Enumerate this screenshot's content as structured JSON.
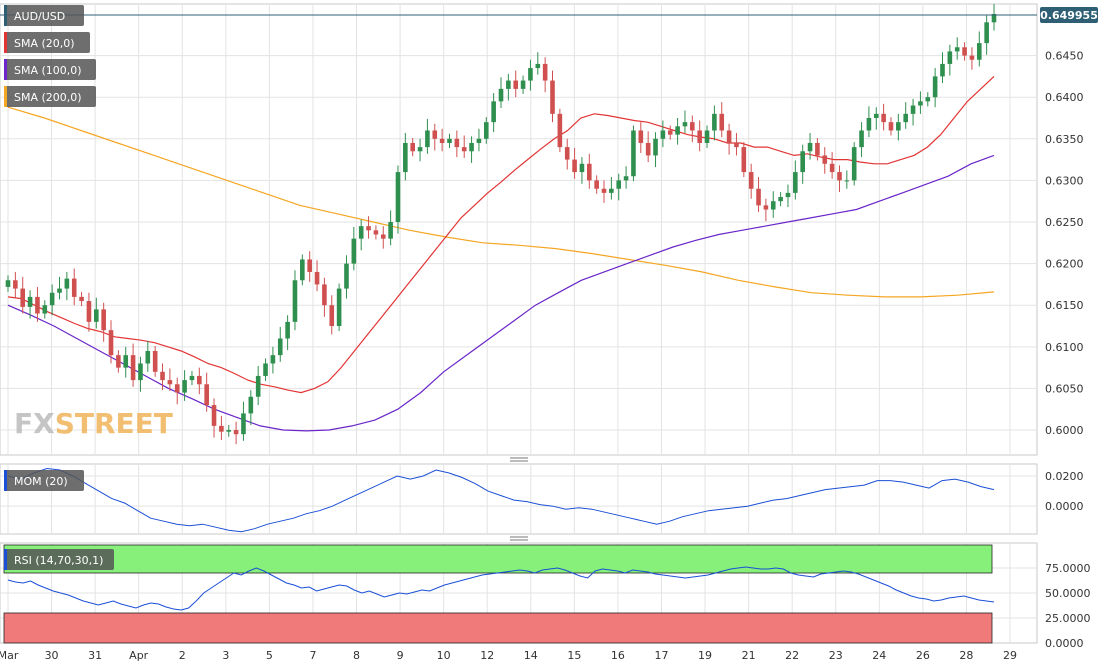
{
  "chart_data": [
    {
      "type": "candlestick",
      "symbol": "AUD/USD",
      "last_price": "0.649955",
      "ylim": [
        0.597,
        0.6512
      ],
      "y_ticks": [
        {
          "v": 0.645,
          "label": "0.6450"
        },
        {
          "v": 0.64,
          "label": "0.6400"
        },
        {
          "v": 0.635,
          "label": "0.6350"
        },
        {
          "v": 0.63,
          "label": "0.6300"
        },
        {
          "v": 0.625,
          "label": "0.6250"
        },
        {
          "v": 0.62,
          "label": "0.6200"
        },
        {
          "v": 0.615,
          "label": "0.6150"
        },
        {
          "v": 0.61,
          "label": "0.6100"
        },
        {
          "v": 0.605,
          "label": "0.6050"
        },
        {
          "v": 0.6,
          "label": "0.6000"
        }
      ],
      "x_labels": [
        "Mar",
        "30",
        "31",
        "Apr",
        "2",
        "3",
        "5",
        "7",
        "8",
        "9",
        "10",
        "12",
        "14",
        "15",
        "16",
        "17",
        "19",
        "21",
        "22",
        "23",
        "24",
        "26",
        "28",
        "29"
      ],
      "legend": [
        {
          "label": "AUD/USD",
          "color": "#2e5f75"
        },
        {
          "label": "SMA (20,0)",
          "color": "#e33434"
        },
        {
          "label": "SMA (100,0)",
          "color": "#6a26c9"
        },
        {
          "label": "SMA (200,0)",
          "color": "#f5a623"
        }
      ],
      "closes": [
        0.618,
        0.617,
        0.6148,
        0.616,
        0.614,
        0.615,
        0.6165,
        0.617,
        0.6182,
        0.616,
        0.6155,
        0.613,
        0.6145,
        0.612,
        0.609,
        0.6075,
        0.609,
        0.606,
        0.608,
        0.6095,
        0.607,
        0.606,
        0.6055,
        0.6045,
        0.606,
        0.6065,
        0.6055,
        0.603,
        0.6005,
        0.5998,
        0.6,
        0.5995,
        0.602,
        0.604,
        0.6065,
        0.608,
        0.609,
        0.611,
        0.613,
        0.618,
        0.6205,
        0.619,
        0.6175,
        0.615,
        0.6125,
        0.617,
        0.62,
        0.623,
        0.6245,
        0.624,
        0.6235,
        0.623,
        0.625,
        0.631,
        0.6345,
        0.6335,
        0.634,
        0.636,
        0.635,
        0.6345,
        0.635,
        0.634,
        0.6335,
        0.6345,
        0.635,
        0.637,
        0.6395,
        0.641,
        0.642,
        0.641,
        0.642,
        0.6435,
        0.644,
        0.642,
        0.638,
        0.634,
        0.6325,
        0.631,
        0.632,
        0.63,
        0.629,
        0.6285,
        0.629,
        0.63,
        0.6305,
        0.636,
        0.6345,
        0.633,
        0.635,
        0.636,
        0.6355,
        0.6365,
        0.637,
        0.636,
        0.6345,
        0.636,
        0.638,
        0.636,
        0.6345,
        0.634,
        0.631,
        0.629,
        0.627,
        0.6265,
        0.6275,
        0.628,
        0.6285,
        0.631,
        0.6335,
        0.6345,
        0.633,
        0.632,
        0.631,
        0.63,
        0.63,
        0.634,
        0.636,
        0.6375,
        0.638,
        0.637,
        0.636,
        0.637,
        0.638,
        0.639,
        0.6395,
        0.64,
        0.6425,
        0.644,
        0.6455,
        0.646,
        0.645,
        0.6445,
        0.6465,
        0.649,
        0.65
      ],
      "sma20": [
        0.616,
        0.6158,
        0.615,
        0.6142,
        0.6135,
        0.6128,
        0.6122,
        0.6118,
        0.6112,
        0.611,
        0.6108,
        0.6105,
        0.61,
        0.6095,
        0.6088,
        0.608,
        0.6075,
        0.6068,
        0.606,
        0.6055,
        0.6052,
        0.6048,
        0.6045,
        0.605,
        0.6058,
        0.6075,
        0.6095,
        0.6115,
        0.6135,
        0.6155,
        0.6175,
        0.6195,
        0.6215,
        0.6235,
        0.6255,
        0.627,
        0.6285,
        0.6298,
        0.6312,
        0.6325,
        0.6338,
        0.635,
        0.636,
        0.6375,
        0.638,
        0.6378,
        0.6375,
        0.6372,
        0.637,
        0.6365,
        0.636,
        0.6355,
        0.6352,
        0.635,
        0.6345,
        0.6345,
        0.634,
        0.634,
        0.6335,
        0.633,
        0.6332,
        0.6328,
        0.6325,
        0.6325,
        0.6322,
        0.632,
        0.632,
        0.6325,
        0.633,
        0.634,
        0.6355,
        0.6375,
        0.6395,
        0.641,
        0.6425
      ],
      "sma20_from": 0,
      "sma100": [
        0.615,
        0.6138,
        0.6125,
        0.611,
        0.6095,
        0.608,
        0.6065,
        0.605,
        0.6038,
        0.6025,
        0.6015,
        0.6005,
        0.6,
        0.5999,
        0.6,
        0.6005,
        0.6012,
        0.6025,
        0.6045,
        0.607,
        0.609,
        0.611,
        0.613,
        0.615,
        0.6165,
        0.618,
        0.619,
        0.62,
        0.621,
        0.622,
        0.6228,
        0.6235,
        0.624,
        0.6245,
        0.625,
        0.6255,
        0.626,
        0.6265,
        0.6275,
        0.6285,
        0.6295,
        0.6305,
        0.632,
        0.633
      ],
      "sma200": [
        0.6388,
        0.6375,
        0.636,
        0.6345,
        0.633,
        0.6315,
        0.63,
        0.6285,
        0.627,
        0.626,
        0.625,
        0.624,
        0.6232,
        0.6225,
        0.6222,
        0.6218,
        0.6212,
        0.6205,
        0.6198,
        0.619,
        0.618,
        0.6172,
        0.6165,
        0.6162,
        0.616,
        0.616,
        0.6162,
        0.6166
      ]
    },
    {
      "type": "line",
      "name": "MOM (20)",
      "ylim": [
        -0.0185,
        0.028
      ],
      "y_ticks": [
        {
          "v": 0.02,
          "label": "0.0200"
        },
        {
          "v": 0.0,
          "label": "0.0000"
        }
      ],
      "values": [
        0.02,
        0.018,
        0.022,
        0.025,
        0.024,
        0.02,
        0.015,
        0.01,
        0.005,
        0.002,
        -0.003,
        -0.008,
        -0.01,
        -0.012,
        -0.013,
        -0.012,
        -0.014,
        -0.016,
        -0.017,
        -0.015,
        -0.012,
        -0.01,
        -0.008,
        -0.005,
        -0.003,
        0.0,
        0.004,
        0.008,
        0.012,
        0.016,
        0.02,
        0.018,
        0.02,
        0.024,
        0.022,
        0.019,
        0.015,
        0.01,
        0.007,
        0.004,
        0.003,
        0.001,
        0.0,
        -0.002,
        -0.001,
        -0.002,
        -0.004,
        -0.006,
        -0.008,
        -0.01,
        -0.012,
        -0.01,
        -0.007,
        -0.005,
        -0.003,
        -0.002,
        -0.001,
        0.0,
        0.002,
        0.004,
        0.005,
        0.007,
        0.009,
        0.011,
        0.012,
        0.013,
        0.014,
        0.017,
        0.017,
        0.016,
        0.014,
        0.012,
        0.017,
        0.018,
        0.016,
        0.013,
        0.011
      ]
    },
    {
      "type": "line",
      "name": "RSI (14,70,30,1)",
      "ylim": [
        0,
        100
      ],
      "bands": {
        "overbought": 70,
        "oversold": 30
      },
      "y_ticks": [
        {
          "v": 75,
          "label": "75.0000"
        },
        {
          "v": 50,
          "label": "50.0000"
        },
        {
          "v": 25,
          "label": "25.0000"
        },
        {
          "v": 0,
          "label": "0.0000"
        }
      ],
      "values": [
        63,
        61,
        60,
        62,
        58,
        55,
        52,
        50,
        48,
        45,
        42,
        40,
        38,
        40,
        42,
        39,
        37,
        35,
        38,
        40,
        39,
        36,
        34,
        33,
        35,
        42,
        50,
        55,
        60,
        65,
        70,
        68,
        72,
        75,
        72,
        68,
        64,
        60,
        58,
        55,
        56,
        52,
        54,
        56,
        58,
        57,
        53,
        50,
        52,
        49,
        46,
        48,
        50,
        49,
        51,
        53,
        52,
        55,
        58,
        60,
        62,
        64,
        66,
        68,
        69,
        70,
        71,
        72,
        73,
        72,
        70,
        73,
        74,
        75,
        73,
        70,
        67,
        65,
        72,
        74,
        73,
        72,
        70,
        73,
        72,
        71,
        69,
        68,
        67,
        66,
        65,
        66,
        67,
        68,
        70,
        72,
        74,
        75,
        76,
        75,
        74,
        74,
        75,
        74,
        70,
        68,
        67,
        66,
        69,
        70,
        71,
        72,
        71,
        69,
        66,
        63,
        60,
        57,
        53,
        50,
        47,
        45,
        44,
        42,
        43,
        45,
        46,
        47,
        45,
        43,
        42,
        41
      ]
    }
  ],
  "branding": {
    "wordmark_fx": "FX",
    "wordmark_rest": "STREET"
  },
  "colors": {
    "up": "#2f8f4f",
    "down": "#d05050",
    "grid": "#e3e3e3",
    "mom": "#1a4fd6",
    "rsi": "#1a4fd6",
    "ob": "#86f07a",
    "os": "#f07a7a",
    "price_tag": "#2e5f75"
  }
}
